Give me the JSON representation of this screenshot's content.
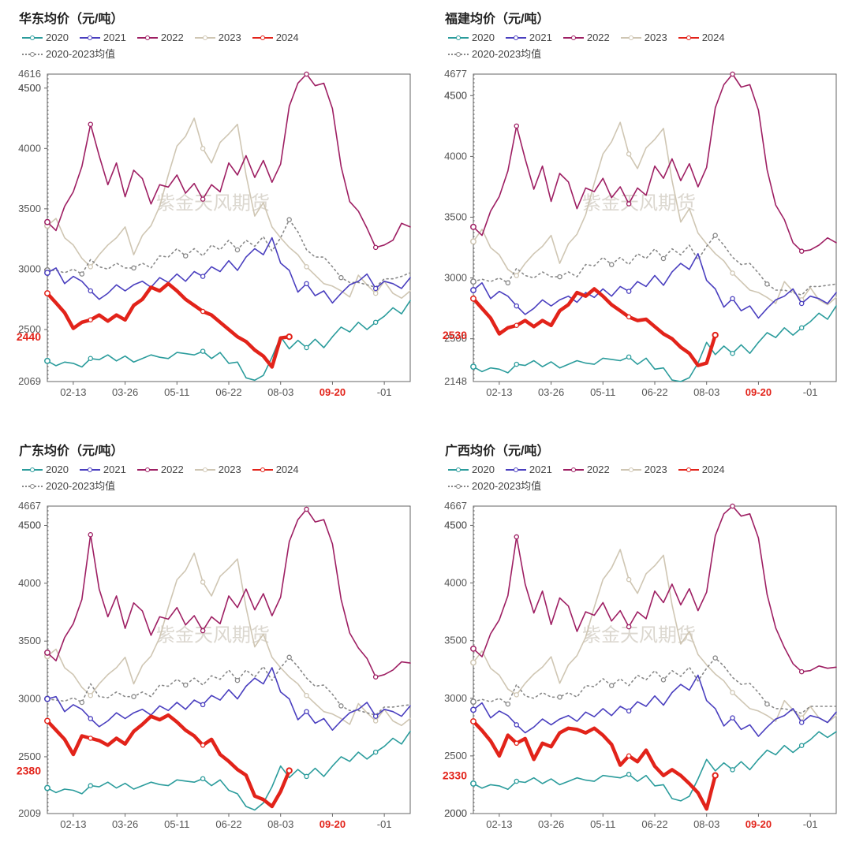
{
  "watermark_text": "紫金天风期货",
  "watermark_color": "#d8d3ca",
  "background_color": "#ffffff",
  "axis_color": "#555555",
  "highlight_color": "#e2231a",
  "x_ticks": [
    "02-13",
    "03-26",
    "05-11",
    "06-22",
    "08-03",
    "09-20",
    "-01"
  ],
  "x_highlight_index": 5,
  "legend": [
    {
      "label": "2020",
      "color": "#2b9c9c",
      "style": "solid",
      "width": 1.6,
      "marker": true
    },
    {
      "label": "2021",
      "color": "#4a3fbf",
      "style": "solid",
      "width": 1.6,
      "marker": true
    },
    {
      "label": "2022",
      "color": "#9e1f63",
      "style": "solid",
      "width": 1.6,
      "marker": true
    },
    {
      "label": "2023",
      "color": "#cfc6b3",
      "style": "solid",
      "width": 1.6,
      "marker": true
    },
    {
      "label": "2024",
      "color": "#e2231a",
      "style": "solid",
      "width": 4.5,
      "marker": true
    },
    {
      "label": "2020-2023均值",
      "color": "#888888",
      "style": "dashed",
      "width": 1.6,
      "marker": true
    }
  ],
  "panels": [
    {
      "id": "huadong",
      "title": "华东均价（元/吨）",
      "ymin": 2069,
      "ymax": 4616,
      "extra_ymax_label": 4500,
      "highlight_value": 2440,
      "series": {
        "2020": [
          2240,
          2200,
          2230,
          2220,
          2190,
          2260,
          2250,
          2290,
          2240,
          2280,
          2230,
          2260,
          2290,
          2270,
          2260,
          2310,
          2300,
          2290,
          2320,
          2260,
          2310,
          2220,
          2230,
          2100,
          2080,
          2120,
          2270,
          2440,
          2340,
          2410,
          2350,
          2420,
          2350,
          2440,
          2520,
          2480,
          2560,
          2500,
          2560,
          2610,
          2680,
          2630,
          2740
        ],
        "2021": [
          2970,
          3010,
          2880,
          2940,
          2900,
          2820,
          2750,
          2800,
          2870,
          2820,
          2870,
          2900,
          2850,
          2930,
          2890,
          2960,
          2900,
          2980,
          2940,
          3020,
          2980,
          3070,
          2990,
          3100,
          3170,
          3120,
          3260,
          3050,
          2990,
          2810,
          2880,
          2780,
          2820,
          2720,
          2800,
          2870,
          2900,
          2960,
          2840,
          2900,
          2880,
          2840,
          2930
        ],
        "2022": [
          3390,
          3320,
          3520,
          3640,
          3850,
          4200,
          3940,
          3700,
          3880,
          3600,
          3820,
          3750,
          3540,
          3700,
          3680,
          3780,
          3630,
          3710,
          3580,
          3700,
          3640,
          3880,
          3780,
          3940,
          3760,
          3900,
          3720,
          3870,
          4350,
          4540,
          4616,
          4520,
          4540,
          4330,
          3850,
          3560,
          3480,
          3340,
          3180,
          3200,
          3240,
          3380,
          3350
        ],
        "2023": [
          3360,
          3420,
          3260,
          3200,
          3090,
          3020,
          3120,
          3200,
          3260,
          3350,
          3120,
          3280,
          3360,
          3520,
          3780,
          4020,
          4100,
          4250,
          4000,
          3880,
          4050,
          4120,
          4200,
          3780,
          3440,
          3550,
          3350,
          3260,
          3180,
          3120,
          3020,
          2950,
          2880,
          2860,
          2820,
          2770,
          2950,
          2870,
          2800,
          2900,
          2800,
          2760,
          2820
        ],
        "2024": [
          2800,
          2720,
          2640,
          2510,
          2560,
          2580,
          2620,
          2570,
          2620,
          2580,
          2700,
          2750,
          2850,
          2820,
          2880,
          2820,
          2750,
          2700,
          2650,
          2620,
          2560,
          2500,
          2440,
          2400,
          2330,
          2280,
          2190,
          2430,
          2440
        ],
        "avg": [
          2990,
          2990,
          2970,
          3000,
          2960,
          3080,
          3020,
          3000,
          3050,
          3010,
          3010,
          3050,
          3010,
          3110,
          3100,
          3170,
          3110,
          3170,
          3110,
          3200,
          3160,
          3240,
          3160,
          3240,
          3190,
          3270,
          3150,
          3260,
          3410,
          3310,
          3160,
          3100,
          3100,
          3020,
          2930,
          2890,
          2890,
          2870,
          2850,
          2920,
          2920,
          2940,
          2970
        ]
      }
    },
    {
      "id": "fujian",
      "title": "福建均价（元/吨）",
      "ymin": 2148,
      "ymax": 4677,
      "extra_ymax_label": 4500,
      "highlight_value": 2530,
      "series": {
        "2020": [
          2270,
          2230,
          2260,
          2250,
          2220,
          2290,
          2280,
          2320,
          2270,
          2310,
          2260,
          2290,
          2320,
          2300,
          2290,
          2340,
          2330,
          2320,
          2350,
          2290,
          2340,
          2250,
          2260,
          2160,
          2148,
          2180,
          2300,
          2470,
          2370,
          2440,
          2380,
          2450,
          2380,
          2470,
          2550,
          2510,
          2590,
          2530,
          2590,
          2640,
          2710,
          2660,
          2770
        ],
        "2021": [
          2900,
          2960,
          2830,
          2890,
          2850,
          2770,
          2700,
          2750,
          2820,
          2770,
          2820,
          2850,
          2800,
          2880,
          2840,
          2910,
          2850,
          2930,
          2890,
          2970,
          2930,
          3020,
          2940,
          3050,
          3120,
          3070,
          3200,
          2980,
          2910,
          2760,
          2830,
          2730,
          2770,
          2670,
          2750,
          2820,
          2850,
          2910,
          2790,
          2850,
          2830,
          2790,
          2880
        ],
        "2022": [
          3420,
          3350,
          3550,
          3670,
          3880,
          4250,
          3980,
          3730,
          3920,
          3630,
          3860,
          3790,
          3570,
          3740,
          3710,
          3820,
          3660,
          3750,
          3610,
          3740,
          3680,
          3920,
          3820,
          3980,
          3800,
          3940,
          3750,
          3910,
          4400,
          4590,
          4677,
          4570,
          4590,
          4380,
          3890,
          3600,
          3480,
          3290,
          3220,
          3230,
          3270,
          3330,
          3290
        ],
        "2023": [
          3300,
          3400,
          3250,
          3190,
          3070,
          3020,
          3120,
          3200,
          3260,
          3350,
          3120,
          3280,
          3360,
          3520,
          3780,
          4020,
          4120,
          4280,
          4020,
          3900,
          4070,
          4140,
          4230,
          3800,
          3460,
          3570,
          3370,
          3280,
          3200,
          3140,
          3040,
          2970,
          2900,
          2880,
          2840,
          2790,
          2970,
          2890,
          2820,
          2920,
          2820,
          2780,
          2840
        ],
        "2024": [
          2830,
          2750,
          2670,
          2540,
          2590,
          2610,
          2650,
          2600,
          2650,
          2610,
          2730,
          2780,
          2880,
          2850,
          2910,
          2850,
          2780,
          2730,
          2680,
          2650,
          2660,
          2600,
          2540,
          2500,
          2430,
          2380,
          2280,
          2300,
          2530
        ],
        "avg": [
          2970,
          2990,
          2970,
          3000,
          2960,
          3080,
          3020,
          3000,
          3050,
          3010,
          3010,
          3050,
          3010,
          3110,
          3100,
          3170,
          3110,
          3170,
          3110,
          3200,
          3160,
          3240,
          3160,
          3240,
          3190,
          3270,
          3150,
          3260,
          3350,
          3270,
          3170,
          3110,
          3120,
          3040,
          2950,
          2900,
          2900,
          2880,
          2860,
          2930,
          2930,
          2940,
          2950
        ]
      }
    },
    {
      "id": "guangdong",
      "title": "广东均价（元/吨）",
      "ymin": 2009,
      "ymax": 4667,
      "extra_ymax_label": 4500,
      "highlight_value": 2380,
      "series": {
        "2020": [
          2230,
          2190,
          2220,
          2210,
          2180,
          2250,
          2240,
          2280,
          2230,
          2270,
          2220,
          2250,
          2280,
          2260,
          2250,
          2300,
          2290,
          2280,
          2310,
          2250,
          2300,
          2210,
          2180,
          2070,
          2040,
          2100,
          2240,
          2420,
          2320,
          2390,
          2330,
          2400,
          2330,
          2420,
          2500,
          2460,
          2540,
          2480,
          2540,
          2590,
          2660,
          2610,
          2720
        ],
        "2021": [
          3000,
          3020,
          2890,
          2950,
          2910,
          2830,
          2760,
          2810,
          2880,
          2830,
          2880,
          2910,
          2860,
          2940,
          2900,
          2970,
          2910,
          2990,
          2950,
          3030,
          2990,
          3080,
          3000,
          3110,
          3180,
          3130,
          3270,
          3060,
          3000,
          2820,
          2890,
          2790,
          2830,
          2730,
          2810,
          2880,
          2910,
          2970,
          2850,
          2910,
          2890,
          2850,
          2940
        ],
        "2022": [
          3400,
          3330,
          3530,
          3650,
          3860,
          4420,
          3950,
          3710,
          3890,
          3610,
          3830,
          3760,
          3550,
          3710,
          3690,
          3790,
          3640,
          3720,
          3590,
          3710,
          3650,
          3890,
          3790,
          3950,
          3770,
          3910,
          3720,
          3880,
          4360,
          4550,
          4640,
          4530,
          4550,
          4340,
          3860,
          3570,
          3440,
          3350,
          3190,
          3210,
          3250,
          3320,
          3310
        ],
        "2023": [
          3370,
          3430,
          3270,
          3210,
          3100,
          3030,
          3130,
          3210,
          3270,
          3360,
          3130,
          3290,
          3370,
          3530,
          3790,
          4030,
          4110,
          4260,
          4010,
          3890,
          4060,
          4130,
          4210,
          3790,
          3450,
          3560,
          3360,
          3270,
          3190,
          3130,
          3030,
          2960,
          2890,
          2870,
          2830,
          2780,
          2960,
          2880,
          2810,
          2910,
          2810,
          2770,
          2830
        ],
        "2024": [
          2810,
          2730,
          2650,
          2520,
          2680,
          2660,
          2640,
          2600,
          2660,
          2610,
          2720,
          2780,
          2850,
          2820,
          2860,
          2800,
          2730,
          2680,
          2600,
          2650,
          2520,
          2460,
          2390,
          2340,
          2160,
          2130,
          2070,
          2200,
          2380
        ],
        "avg": [
          3000,
          2990,
          2980,
          3010,
          2970,
          3130,
          3020,
          3010,
          3060,
          3020,
          3020,
          3060,
          3020,
          3120,
          3110,
          3170,
          3120,
          3180,
          3120,
          3200,
          3170,
          3250,
          3160,
          3250,
          3190,
          3280,
          3160,
          3270,
          3360,
          3280,
          3180,
          3110,
          3120,
          3040,
          2940,
          2900,
          2900,
          2880,
          2860,
          2930,
          2930,
          2940,
          2950
        ]
      }
    },
    {
      "id": "guangxi",
      "title": "广西均价（元/吨）",
      "ymin": 2000,
      "ymax": 4667,
      "extra_ymax_label": 4500,
      "highlight_value": 2330,
      "series": {
        "2020": [
          2260,
          2220,
          2250,
          2240,
          2210,
          2280,
          2270,
          2310,
          2260,
          2300,
          2250,
          2280,
          2310,
          2290,
          2280,
          2330,
          2320,
          2310,
          2340,
          2280,
          2330,
          2240,
          2250,
          2130,
          2110,
          2150,
          2300,
          2470,
          2370,
          2440,
          2380,
          2450,
          2380,
          2470,
          2550,
          2510,
          2590,
          2530,
          2590,
          2640,
          2710,
          2660,
          2710
        ],
        "2021": [
          2900,
          2960,
          2830,
          2890,
          2850,
          2770,
          2700,
          2750,
          2820,
          2770,
          2820,
          2850,
          2800,
          2880,
          2840,
          2910,
          2850,
          2930,
          2890,
          2970,
          2930,
          3020,
          2940,
          3050,
          3120,
          3070,
          3200,
          2980,
          2910,
          2760,
          2830,
          2730,
          2770,
          2670,
          2750,
          2820,
          2850,
          2910,
          2790,
          2850,
          2830,
          2790,
          2880
        ],
        "2022": [
          3430,
          3360,
          3560,
          3680,
          3890,
          4400,
          3990,
          3740,
          3930,
          3640,
          3870,
          3800,
          3580,
          3750,
          3720,
          3830,
          3670,
          3760,
          3620,
          3750,
          3690,
          3930,
          3830,
          3990,
          3810,
          3950,
          3760,
          3920,
          4410,
          4600,
          4667,
          4580,
          4600,
          4390,
          3900,
          3610,
          3440,
          3300,
          3230,
          3240,
          3280,
          3260,
          3270
        ],
        "2023": [
          3310,
          3410,
          3260,
          3200,
          3080,
          3030,
          3130,
          3210,
          3270,
          3360,
          3130,
          3290,
          3370,
          3530,
          3790,
          4030,
          4130,
          4290,
          4030,
          3910,
          4080,
          4150,
          4240,
          3810,
          3470,
          3580,
          3380,
          3290,
          3210,
          3150,
          3050,
          2980,
          2910,
          2890,
          2850,
          2800,
          2980,
          2900,
          2830,
          2930,
          2830,
          2790,
          2850
        ],
        "2024": [
          2800,
          2720,
          2630,
          2500,
          2680,
          2610,
          2650,
          2470,
          2610,
          2580,
          2700,
          2740,
          2730,
          2700,
          2740,
          2680,
          2600,
          2420,
          2500,
          2450,
          2550,
          2410,
          2330,
          2380,
          2330,
          2260,
          2180,
          2040,
          2330
        ],
        "avg": [
          2970,
          2990,
          2970,
          3000,
          2950,
          3120,
          3020,
          3000,
          3050,
          3010,
          3010,
          3050,
          3010,
          3110,
          3100,
          3170,
          3110,
          3170,
          3110,
          3200,
          3160,
          3240,
          3160,
          3240,
          3190,
          3270,
          3150,
          3260,
          3350,
          3280,
          3180,
          3120,
          3130,
          3050,
          2950,
          2910,
          2910,
          2890,
          2870,
          2930,
          2930,
          2930,
          2930
        ]
      }
    }
  ]
}
